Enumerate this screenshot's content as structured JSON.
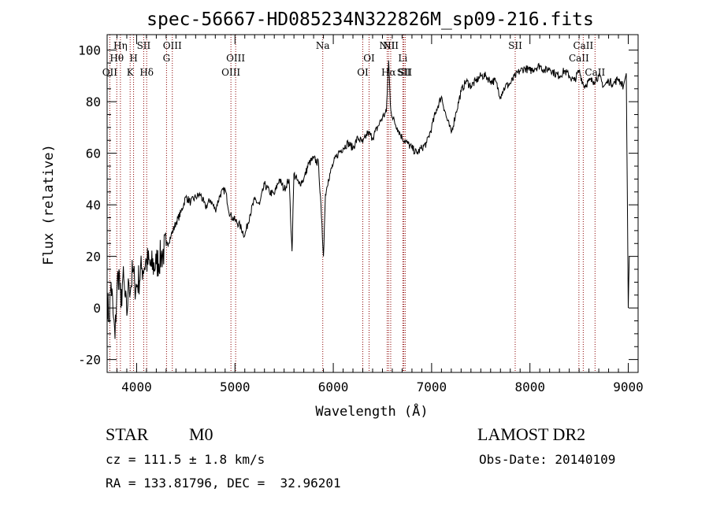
{
  "chart_data": {
    "type": "line",
    "title": "spec-56667-HD085234N322826M_sp09-216.fits",
    "xlabel": "Wavelength (Å)",
    "ylabel": "Flux (relative)",
    "xlim": [
      3700,
      9100
    ],
    "ylim": [
      -25,
      106
    ],
    "x_ticks": [
      4000,
      5000,
      6000,
      7000,
      8000,
      9000
    ],
    "y_ticks": [
      -20,
      0,
      20,
      40,
      60,
      80,
      100
    ],
    "grid": false,
    "line_color": "#000000",
    "marker_color": "#8b0000",
    "series": [
      {
        "x": [
          3700,
          3720,
          3740,
          3760,
          3780,
          3800,
          3820,
          3840,
          3860,
          3880,
          3900,
          3920,
          3940,
          3960,
          3980,
          4000,
          4050,
          4100,
          4150,
          4200,
          4250,
          4300,
          4350,
          4400,
          4450,
          4500,
          4550,
          4600,
          4650,
          4700,
          4750,
          4800,
          4850,
          4900,
          4950,
          5000,
          5050,
          5100,
          5150,
          5200,
          5250,
          5300,
          5350,
          5400,
          5450,
          5500,
          5550,
          5580,
          5600,
          5650,
          5700,
          5750,
          5800,
          5850,
          5880,
          5900,
          5920,
          5950,
          6000,
          6050,
          6100,
          6150,
          6200,
          6250,
          6300,
          6350,
          6400,
          6450,
          6500,
          6540,
          6563,
          6580,
          6600,
          6650,
          6700,
          6750,
          6800,
          6850,
          6900,
          6950,
          7000,
          7050,
          7100,
          7150,
          7200,
          7250,
          7300,
          7350,
          7400,
          7450,
          7500,
          7550,
          7600,
          7650,
          7700,
          7720,
          7750,
          7800,
          7850,
          7900,
          7950,
          8000,
          8050,
          8100,
          8150,
          8200,
          8250,
          8300,
          8350,
          8400,
          8450,
          8500,
          8550,
          8600,
          8650,
          8700,
          8750,
          8800,
          8850,
          8900,
          8950,
          8980,
          9000,
          9010
        ],
        "y": [
          5,
          -5,
          10,
          -2,
          -12,
          8,
          15,
          0,
          12,
          5,
          -3,
          10,
          8,
          14,
          10,
          8,
          15,
          18,
          16,
          17,
          20,
          24,
          28,
          33,
          37,
          43,
          41,
          43,
          44,
          39,
          42,
          38,
          44,
          46,
          36,
          34,
          32,
          28,
          36,
          42,
          40,
          48,
          45,
          44,
          50,
          46,
          50,
          22,
          52,
          48,
          50,
          56,
          58,
          56,
          35,
          20,
          44,
          50,
          56,
          60,
          62,
          64,
          62,
          66,
          64,
          68,
          66,
          70,
          74,
          76,
          96,
          79,
          74,
          70,
          66,
          64,
          62,
          60,
          62,
          64,
          70,
          77,
          82,
          74,
          68,
          76,
          84,
          88,
          86,
          88,
          90,
          90,
          88,
          88,
          82,
          84,
          86,
          87,
          90,
          92,
          93,
          92,
          93,
          94,
          92,
          93,
          91,
          90,
          92,
          90,
          88,
          92,
          86,
          88,
          88,
          90,
          86,
          88,
          87,
          89,
          86,
          91,
          0,
          20
        ]
      }
    ],
    "line_markers": [
      {
        "x": 3727,
        "label": "OII",
        "row": 2
      },
      {
        "x": 3798,
        "label": "Hθ",
        "row": 1
      },
      {
        "x": 3835,
        "label": "Hη",
        "row": 0
      },
      {
        "x": 3934,
        "label": "K",
        "row": 2
      },
      {
        "x": 3969,
        "label": "H",
        "row": 1
      },
      {
        "x": 4072,
        "label": "SII",
        "row": 0
      },
      {
        "x": 4102,
        "label": "Hδ",
        "row": 2
      },
      {
        "x": 4304,
        "label": "G",
        "row": 1
      },
      {
        "x": 4363,
        "label": "OIII",
        "row": 0
      },
      {
        "x": 4959,
        "label": "OIII",
        "row": 2
      },
      {
        "x": 5007,
        "label": "OIII",
        "row": 1
      },
      {
        "x": 5893,
        "label": "Na",
        "row": 0
      },
      {
        "x": 6300,
        "label": "OI",
        "row": 2
      },
      {
        "x": 6364,
        "label": "OI",
        "row": 1
      },
      {
        "x": 6548,
        "label": "NII",
        "row": 0
      },
      {
        "x": 6563,
        "label": "Hα",
        "row": 2
      },
      {
        "x": 6584,
        "label": "NII",
        "row": 0
      },
      {
        "x": 6707,
        "label": "Li",
        "row": 1
      },
      {
        "x": 6717,
        "label": "SII",
        "row": 2
      },
      {
        "x": 6731,
        "label": "SII",
        "row": 2
      },
      {
        "x": 7850,
        "label": "SII",
        "row": 0
      },
      {
        "x": 8498,
        "label": "CaII",
        "row": 1
      },
      {
        "x": 8542,
        "label": "CaII",
        "row": 0
      },
      {
        "x": 8662,
        "label": "CaII",
        "row": 2
      }
    ]
  },
  "info": {
    "class_label": "STAR",
    "subclass_label": "M0",
    "redshift_text": "cz = 111.5 ± 1.8 km/s",
    "coords_text": "RA = 133.81796, DEC =  32.96201",
    "survey_label": "LAMOST DR2",
    "obs_date_text": "Obs-Date: 20140109"
  }
}
